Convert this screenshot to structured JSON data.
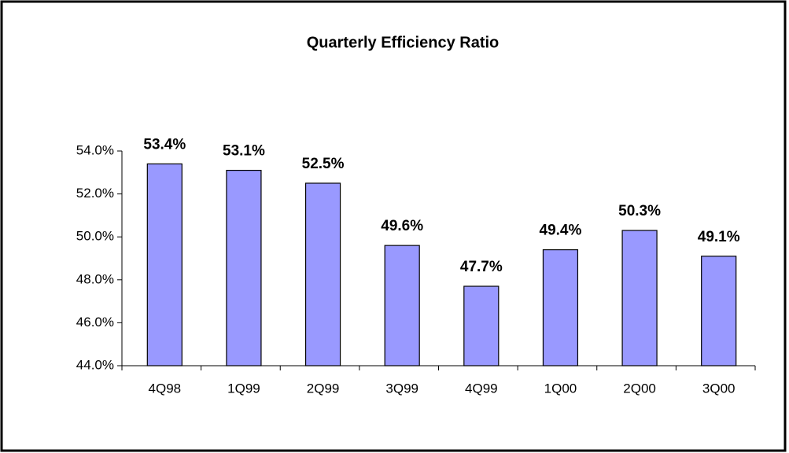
{
  "chart_data": {
    "type": "bar",
    "title": "Quarterly Efficiency Ratio",
    "categories": [
      "4Q98",
      "1Q99",
      "2Q99",
      "3Q99",
      "4Q99",
      "1Q00",
      "2Q00",
      "3Q00"
    ],
    "values": [
      53.4,
      53.1,
      52.5,
      49.6,
      47.7,
      49.4,
      50.3,
      49.1
    ],
    "value_labels": [
      "53.4%",
      "53.1%",
      "52.5%",
      "49.6%",
      "47.7%",
      "49.4%",
      "50.3%",
      "49.1%"
    ],
    "color": "#9999ff",
    "ylim": [
      44,
      54
    ],
    "yticks": [
      {
        "value": 44,
        "label": "44.0%"
      },
      {
        "value": 46,
        "label": "46.0%"
      },
      {
        "value": 48,
        "label": "48.0%"
      },
      {
        "value": 50,
        "label": "50.0%"
      },
      {
        "value": 52,
        "label": "52.0%"
      },
      {
        "value": 54,
        "label": "54.0%"
      }
    ],
    "grid": false
  }
}
